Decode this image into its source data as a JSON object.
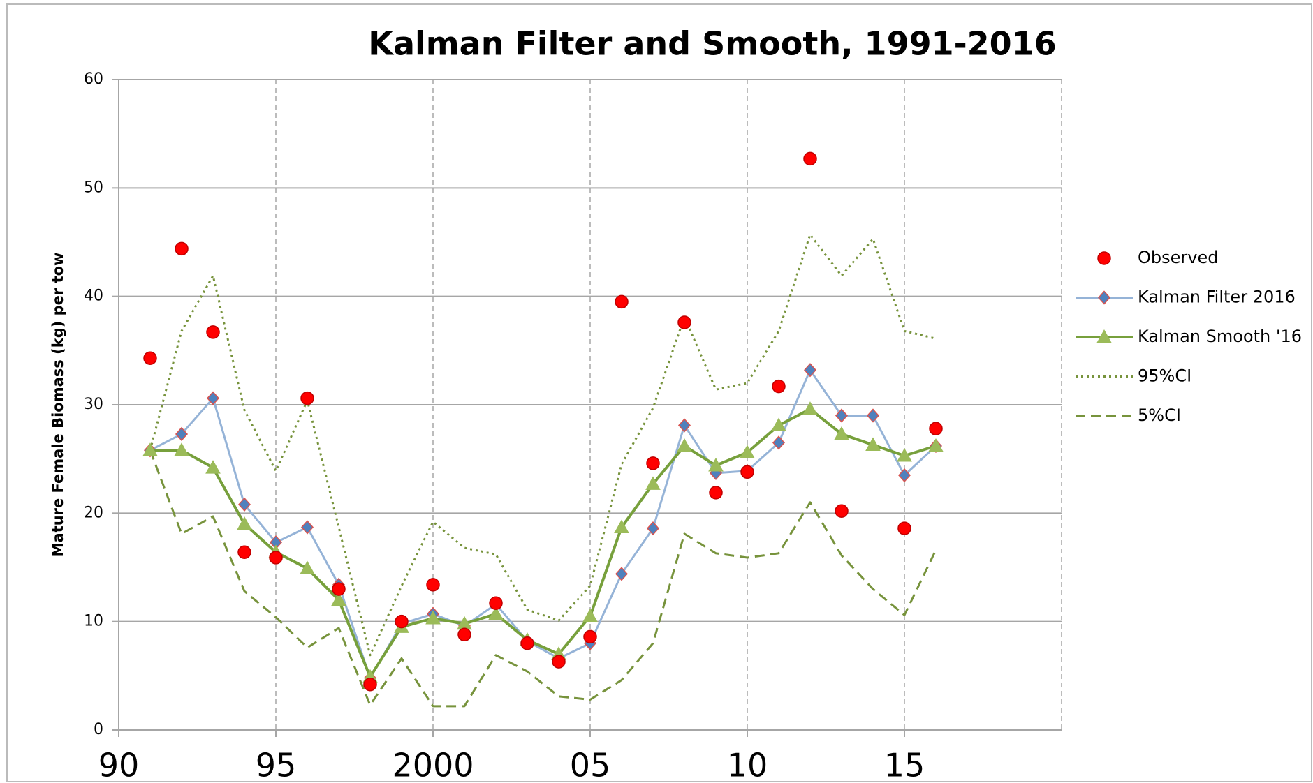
{
  "chart_data": {
    "type": "line",
    "title": "Kalman Filter and Smooth, 1991-2016",
    "y_label": "Mature Female Biomass (kg) per tow",
    "x": [
      1991,
      1992,
      1993,
      1994,
      1995,
      1996,
      1997,
      1998,
      1999,
      2000,
      2001,
      2002,
      2003,
      2004,
      2005,
      2006,
      2007,
      2008,
      2009,
      2010,
      2011,
      2012,
      2013,
      2014,
      2015,
      2016
    ],
    "xlim": [
      1990,
      2020
    ],
    "xticks": [
      {
        "value": 1990,
        "label": "90"
      },
      {
        "value": 1995,
        "label": "95"
      },
      2000,
      {
        "value": 2005,
        "label": "05"
      },
      {
        "value": 2010,
        "label": "10"
      },
      {
        "value": 2015,
        "label": "15"
      }
    ],
    "ylim": [
      0,
      60
    ],
    "yticks": [
      0,
      10,
      20,
      30,
      40,
      50,
      60
    ],
    "grid": true,
    "legend": "right",
    "series": [
      {
        "name": "Observed",
        "color": "#ff0000",
        "marker": "circle",
        "line_style": "none",
        "values": [
          34.3,
          44.4,
          36.7,
          16.4,
          15.9,
          30.6,
          13.0,
          4.2,
          10.0,
          13.4,
          8.8,
          11.7,
          8.0,
          6.3,
          8.6,
          39.5,
          24.6,
          37.6,
          21.9,
          23.8,
          31.7,
          52.7,
          20.2,
          null,
          18.6,
          27.8
        ]
      },
      {
        "name": "Kalman Filter 2016",
        "color": "#95b3d7",
        "marker": "diamond",
        "line_style": "solid",
        "values": [
          25.8,
          27.3,
          30.6,
          20.8,
          17.3,
          18.7,
          13.4,
          4.8,
          9.8,
          10.7,
          9.6,
          11.6,
          8.2,
          6.6,
          8.0,
          14.4,
          18.6,
          28.1,
          23.7,
          23.9,
          26.5,
          33.2,
          29.0,
          29.0,
          23.5,
          26.2
        ]
      },
      {
        "name": "Kalman Smooth  '16",
        "color": "#77a03c",
        "marker": "triangle",
        "line_style": "solid",
        "values": [
          25.8,
          25.8,
          24.2,
          19.0,
          16.4,
          14.9,
          12.0,
          4.9,
          9.5,
          10.3,
          9.8,
          10.7,
          8.3,
          7.0,
          10.5,
          18.7,
          22.7,
          26.2,
          24.4,
          25.6,
          28.1,
          29.6,
          27.3,
          26.3,
          25.3,
          26.2
        ]
      },
      {
        "name": "95%CI",
        "color": "#77933c",
        "marker": "none",
        "line_style": "dotted",
        "values": [
          25.8,
          36.8,
          41.9,
          29.5,
          23.9,
          30.4,
          18.7,
          6.9,
          13.3,
          19.2,
          16.8,
          16.2,
          11.1,
          10.1,
          13.3,
          24.5,
          29.7,
          38.1,
          31.4,
          32.0,
          36.8,
          45.7,
          41.9,
          45.3,
          36.8,
          36.1
        ]
      },
      {
        "name": "5%CI",
        "color": "#77933c",
        "marker": "none",
        "line_style": "dashed",
        "values": [
          25.8,
          18.1,
          19.7,
          12.8,
          10.4,
          7.6,
          9.4,
          2.3,
          6.6,
          2.2,
          2.2,
          6.9,
          5.4,
          3.1,
          2.8,
          4.6,
          8.0,
          18.1,
          16.3,
          15.9,
          16.3,
          21.0,
          16.1,
          13.0,
          10.6,
          16.6
        ]
      }
    ]
  }
}
